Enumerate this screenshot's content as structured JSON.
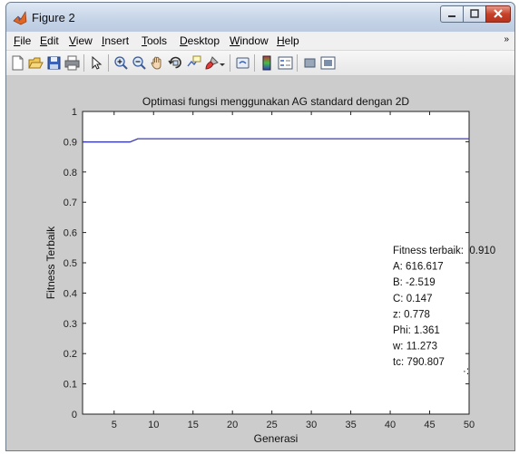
{
  "window": {
    "title": "Figure 2"
  },
  "menu": {
    "items": [
      "File",
      "Edit",
      "View",
      "Insert",
      "Tools",
      "Desktop",
      "Window",
      "Help"
    ],
    "overflow_arrow": "»"
  },
  "toolbar": {
    "icons": [
      "new-figure-icon",
      "open-file-icon",
      "save-icon",
      "print-icon",
      "edit-plot-arrow-icon",
      "zoom-in-icon",
      "zoom-out-icon",
      "pan-hand-icon",
      "rotate-3d-icon",
      "data-cursor-icon",
      "brush-icon",
      "link-plot-icon",
      "colorbar-icon",
      "legend-icon",
      "hide-plot-tools-icon",
      "show-plot-tools-icon"
    ]
  },
  "chart_data": {
    "type": "line",
    "title": "Optimasi fungsi menggunakan AG standard dengan 2D",
    "xlabel": "Generasi",
    "ylabel": "Fitness Terbaik",
    "xlim": [
      1,
      50
    ],
    "ylim": [
      0,
      1
    ],
    "xticks": [
      5,
      10,
      15,
      20,
      25,
      30,
      35,
      40,
      45,
      50
    ],
    "yticks": [
      0,
      0.1,
      0.2,
      0.3,
      0.4,
      0.5,
      0.6,
      0.7,
      0.8,
      0.9,
      1
    ],
    "xticklabels": [
      "5",
      "10",
      "15",
      "20",
      "25",
      "30",
      "35",
      "40",
      "45",
      "50"
    ],
    "yticklabels": [
      "0",
      "0.1",
      "0.2",
      "0.3",
      "0.4",
      "0.5",
      "0.6",
      "0.7",
      "0.8",
      "0.9",
      "1"
    ],
    "grid": false,
    "line_color": "#3b3bb0",
    "series": [
      {
        "x": [
          1,
          7,
          8,
          50
        ],
        "y": [
          0.899,
          0.899,
          0.91,
          0.91
        ]
      }
    ],
    "annotations": [
      "Fitness terbaik:  0.910",
      "A: 616.617",
      "B: -2.519",
      "C: 0.147",
      "z: 0.778",
      "Phi: 1.361",
      "w: 11.273",
      "tc: 790.807"
    ],
    "marker_text": "·:"
  }
}
